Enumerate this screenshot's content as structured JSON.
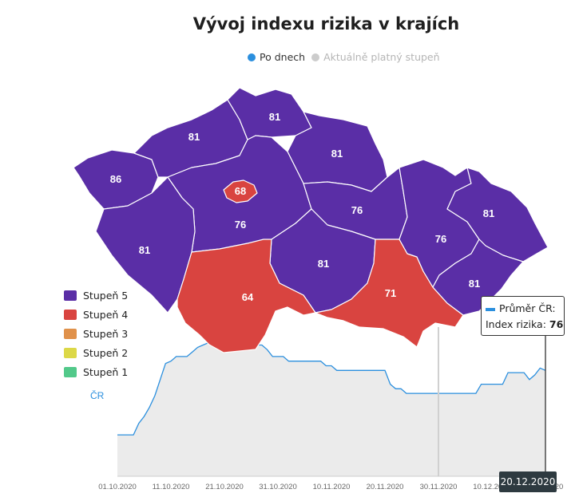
{
  "title": "Vývoj indexu rizika v krajích",
  "toggles": [
    {
      "label": "Po dnech",
      "color": "#2b8fde",
      "active": true
    },
    {
      "label": "Aktuálně platný stupeň",
      "color": "#cccccc",
      "active": false
    }
  ],
  "legend": [
    {
      "label": "Stupeň 5",
      "color": "#5a2ea6"
    },
    {
      "label": "Stupeň 4",
      "color": "#d94440"
    },
    {
      "label": "Stupeň 3",
      "color": "#e0914a"
    },
    {
      "label": "Stupeň 2",
      "color": "#dcd847"
    },
    {
      "label": "Stupeň 1",
      "color": "#52c98a"
    }
  ],
  "regions": {
    "karlovarsky": "86",
    "ustecky": "81",
    "liberecky": "81",
    "kralovehradecky": "81",
    "praha": "68",
    "stredocesky": "76",
    "pardubicky": "76",
    "plzensky": "81",
    "jihocesky": "64",
    "vysocina": "81",
    "jihomoravsky": "71",
    "olomoucky": "76",
    "moravskoslezsky": "81",
    "zlinsky": "81"
  },
  "chart_data": {
    "type": "area",
    "series": [
      {
        "name": "ČR"
      }
    ],
    "x": [
      "01.10.2020",
      "02.10.2020",
      "03.10.2020",
      "04.10.2020",
      "05.10.2020",
      "06.10.2020",
      "07.10.2020",
      "08.10.2020",
      "09.10.2020",
      "10.10.2020",
      "11.10.2020",
      "12.10.2020",
      "13.10.2020",
      "14.10.2020",
      "15.10.2020",
      "16.10.2020",
      "17.10.2020",
      "18.10.2020",
      "19.10.2020",
      "20.10.2020",
      "21.10.2020",
      "22.10.2020",
      "23.10.2020",
      "24.10.2020",
      "25.10.2020",
      "26.10.2020",
      "27.10.2020",
      "28.10.2020",
      "29.10.2020",
      "30.10.2020",
      "31.10.2020",
      "01.11.2020",
      "02.11.2020",
      "03.11.2020",
      "04.11.2020",
      "05.11.2020",
      "06.11.2020",
      "07.11.2020",
      "08.11.2020",
      "09.11.2020",
      "10.11.2020",
      "11.11.2020",
      "12.11.2020",
      "13.11.2020",
      "14.11.2020",
      "15.11.2020",
      "16.11.2020",
      "17.11.2020",
      "18.11.2020",
      "19.11.2020",
      "20.11.2020",
      "21.11.2020",
      "22.11.2020",
      "23.11.2020",
      "24.11.2020",
      "25.11.2020",
      "26.11.2020",
      "27.11.2020",
      "28.11.2020",
      "29.11.2020",
      "30.11.2020",
      "01.12.2020",
      "02.12.2020",
      "03.12.2020",
      "04.12.2020",
      "05.12.2020",
      "06.12.2020",
      "07.12.2020",
      "08.12.2020",
      "09.12.2020",
      "10.12.2020",
      "11.12.2020",
      "12.12.2020",
      "13.12.2020",
      "14.12.2020",
      "15.12.2020",
      "16.12.2020",
      "17.12.2020",
      "18.12.2020",
      "19.12.2020",
      "20.12.2020"
    ],
    "values": [
      48,
      48,
      48,
      48,
      53,
      56,
      60,
      65,
      72,
      79,
      80,
      82,
      82,
      82,
      84,
      86,
      87,
      88,
      88,
      88,
      86,
      88,
      88,
      88,
      87,
      88,
      87,
      87,
      85,
      82,
      82,
      82,
      80,
      80,
      80,
      80,
      80,
      80,
      80,
      78,
      78,
      76,
      76,
      76,
      76,
      76,
      76,
      76,
      76,
      76,
      76,
      70,
      68,
      68,
      66,
      66,
      66,
      66,
      66,
      66,
      66,
      66,
      66,
      66,
      66,
      66,
      66,
      66,
      70,
      70,
      70,
      70,
      70,
      75,
      75,
      75,
      75,
      72,
      74,
      77,
      76
    ],
    "x_ticks": [
      "01.10.2020",
      "11.10.2020",
      "21.10.2020",
      "31.10.2020",
      "10.11.2020",
      "20.11.2020",
      "30.11.2020",
      "10.12.2020",
      "20"
    ],
    "highlight_date": "20.12.2020",
    "ylim": [
      30,
      100
    ]
  },
  "tooltip": {
    "line1": "Průměr ČR:",
    "line2_label": "Index rizika:",
    "line2_value": "76"
  },
  "date_badge": "20.12.2020"
}
